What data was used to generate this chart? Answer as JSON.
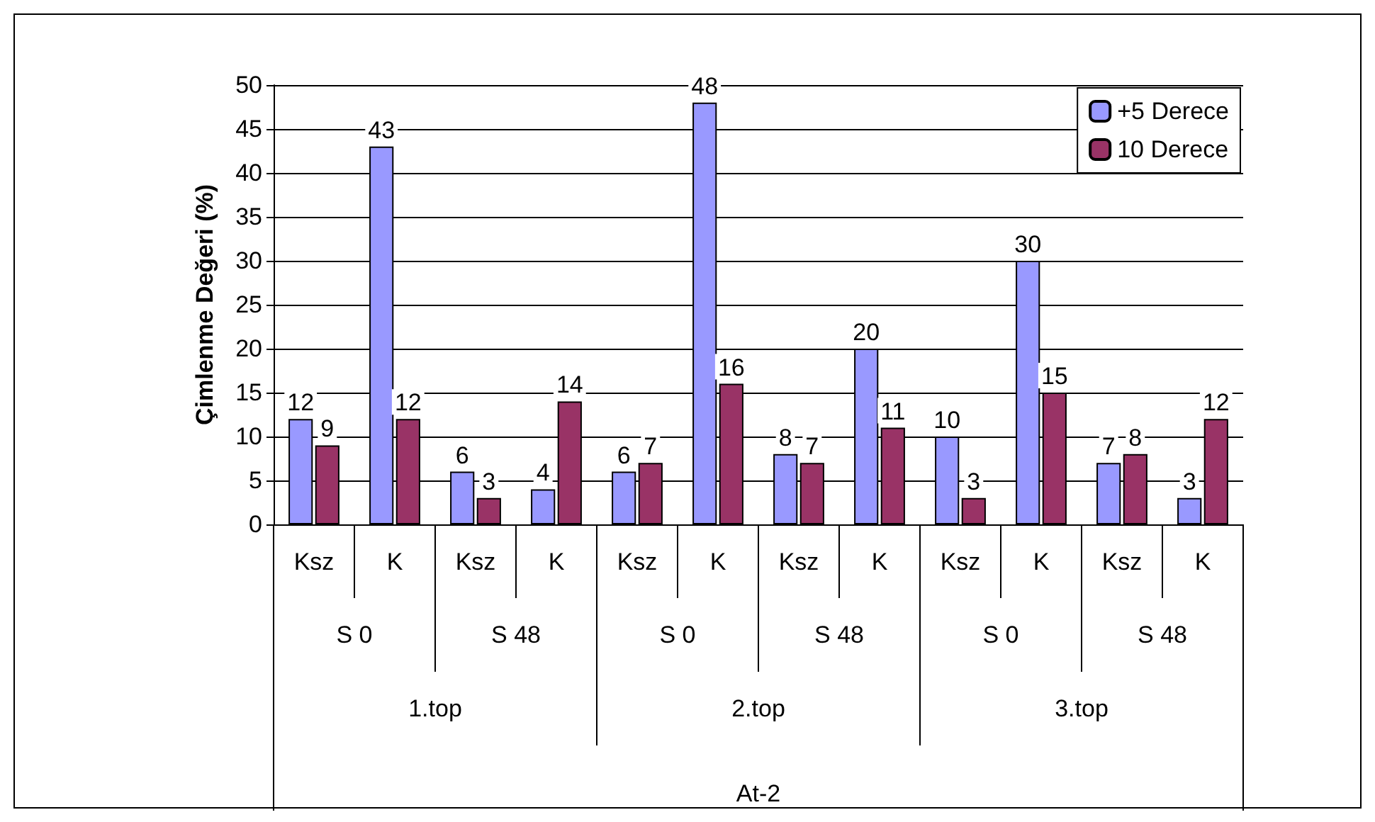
{
  "chart_data": {
    "type": "bar",
    "ylabel": "Çimlenme Değeri (%)",
    "categories": [
      "Ksz",
      "K",
      "Ksz",
      "K",
      "Ksz",
      "K",
      "Ksz",
      "K",
      "Ksz",
      "K",
      "Ksz",
      "K"
    ],
    "series": [
      {
        "name": "+5 Derece",
        "color": "#9999ff",
        "values": [
          12,
          43,
          6,
          4,
          6,
          48,
          8,
          20,
          10,
          30,
          7,
          3
        ]
      },
      {
        "name": "10 Derece",
        "color": "#993366",
        "values": [
          9,
          12,
          3,
          14,
          7,
          16,
          7,
          11,
          3,
          15,
          8,
          12
        ]
      }
    ],
    "annotations": [
      "S 0",
      "S 48",
      "S 0",
      "S 48",
      "S 0",
      "S 48",
      "1.top",
      "2.top",
      "3.top",
      "At-2"
    ],
    "ylim": [
      0,
      50
    ],
    "yticks": [
      0,
      5,
      10,
      15,
      20,
      25,
      30,
      35,
      40,
      45,
      50
    ],
    "grid": "y",
    "legend": "top right",
    "data_labels": true
  }
}
